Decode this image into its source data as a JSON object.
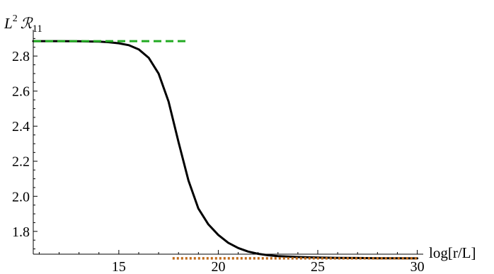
{
  "chart_data": {
    "type": "line",
    "title": "",
    "xlabel": "log[r/L]",
    "ylabel_parts": {
      "base": "L",
      "power": "2",
      "symbol": "ℛ",
      "index": "11"
    },
    "xlim": [
      10.7,
      30.3
    ],
    "ylim": [
      1.67,
      2.95
    ],
    "x_axis_at_y": 1.67,
    "y_axis_at_x": 10.7,
    "xticks": [
      {
        "value": 15,
        "label": "15"
      },
      {
        "value": 20,
        "label": "20"
      },
      {
        "value": 25,
        "label": "25"
      },
      {
        "value": 30,
        "label": "30"
      }
    ],
    "yticks": [
      {
        "value": 1.8,
        "label": "1.8"
      },
      {
        "value": 2.0,
        "label": "2.0"
      },
      {
        "value": 2.2,
        "label": "2.2"
      },
      {
        "value": 2.4,
        "label": "2.4"
      },
      {
        "value": 2.6,
        "label": "2.6"
      },
      {
        "value": 2.8,
        "label": "2.8"
      }
    ],
    "grid": false,
    "series": [
      {
        "style": "solid",
        "color": "#000000",
        "x": [
          10.7,
          12,
          13,
          14,
          14.5,
          15,
          15.5,
          16,
          16.5,
          17,
          17.5,
          18,
          18.5,
          19,
          19.5,
          20,
          20.5,
          21,
          21.5,
          22,
          22.5,
          23,
          24,
          25,
          26,
          27,
          28,
          29,
          30
        ],
        "y": [
          2.885,
          2.885,
          2.884,
          2.882,
          2.879,
          2.873,
          2.862,
          2.838,
          2.79,
          2.7,
          2.54,
          2.31,
          2.09,
          1.93,
          1.84,
          1.78,
          1.735,
          1.705,
          1.685,
          1.672,
          1.664,
          1.659,
          1.654,
          1.651,
          1.649,
          1.648,
          1.647,
          1.647,
          1.646
        ]
      },
      {
        "style": "dashed",
        "color": "#22aa22",
        "x": [
          10.7,
          18.4
        ],
        "y": [
          2.885,
          2.885
        ]
      },
      {
        "style": "dotted",
        "color": "#c06a1a",
        "x": [
          17.7,
          30.0
        ],
        "y": [
          1.646,
          1.646
        ]
      }
    ]
  }
}
